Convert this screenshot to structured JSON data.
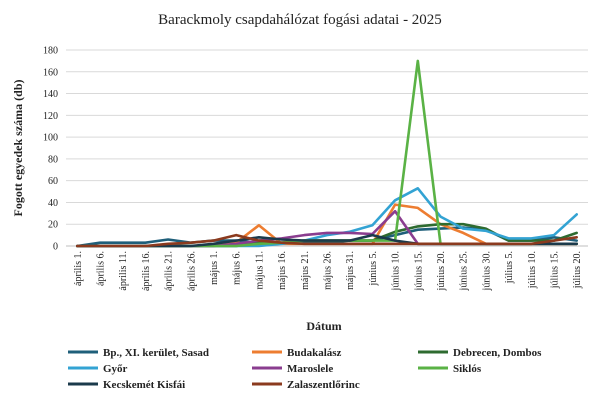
{
  "chart_data": {
    "type": "line",
    "title": "Barackmoly csapdahálózat fogási adatai - 2025",
    "xlabel": "Dátum",
    "ylabel": "Fogott egyedek száma (db)",
    "ylim": [
      0,
      180
    ],
    "yticks": [
      0,
      20,
      40,
      60,
      80,
      100,
      120,
      140,
      160,
      180
    ],
    "grid": true,
    "legend_position": "bottom",
    "categories": [
      "április 1.",
      "április 6.",
      "április 11.",
      "április 16.",
      "április 21.",
      "április 26.",
      "május 1.",
      "május 6.",
      "május 11.",
      "május 16.",
      "május 21.",
      "május 26.",
      "május 31.",
      "június 5.",
      "június 10.",
      "június 15.",
      "június 20.",
      "június 25.",
      "június 30.",
      "július 5.",
      "július 10.",
      "július 15.",
      "július 20."
    ],
    "series": [
      {
        "name": "Bp., XI. kerület, Sasad",
        "color": "#1f5f7a",
        "values": [
          0,
          3,
          3,
          3,
          6,
          3,
          5,
          5,
          3,
          3,
          3,
          3,
          5,
          5,
          10,
          15,
          16,
          17,
          15,
          5,
          5,
          8,
          5
        ]
      },
      {
        "name": "Budakalász",
        "color": "#ed7d31",
        "values": [
          0,
          0,
          0,
          0,
          0,
          0,
          0,
          3,
          19,
          2,
          2,
          2,
          2,
          2,
          38,
          35,
          20,
          12,
          2,
          2,
          2,
          2,
          2
        ]
      },
      {
        "name": "Debrecen, Dombos",
        "color": "#2e6b30",
        "values": [
          0,
          0,
          0,
          0,
          0,
          0,
          0,
          0,
          3,
          3,
          5,
          5,
          5,
          5,
          13,
          18,
          20,
          20,
          16,
          5,
          5,
          5,
          12
        ]
      },
      {
        "name": "Győr",
        "color": "#33a3d3",
        "values": [
          0,
          0,
          0,
          0,
          0,
          0,
          0,
          0,
          0,
          2,
          5,
          10,
          13,
          19,
          42,
          53,
          27,
          16,
          14,
          7,
          7,
          10,
          29
        ]
      },
      {
        "name": "Maroslele",
        "color": "#8a3d8f",
        "values": [
          0,
          0,
          0,
          0,
          0,
          0,
          0,
          2,
          5,
          7,
          10,
          12,
          12,
          11,
          32,
          2,
          2,
          2,
          2,
          2,
          2,
          2,
          2
        ]
      },
      {
        "name": "Siklós",
        "color": "#5ab245",
        "values": [
          0,
          0,
          0,
          0,
          0,
          0,
          0,
          0,
          2,
          3,
          5,
          5,
          5,
          5,
          5,
          170,
          2,
          2,
          2,
          2,
          2,
          2,
          2
        ]
      },
      {
        "name": "Kecskemét Kisfái",
        "color": "#1b3a4b",
        "values": [
          0,
          0,
          0,
          0,
          0,
          0,
          2,
          5,
          8,
          6,
          5,
          5,
          5,
          10,
          5,
          2,
          2,
          2,
          2,
          2,
          2,
          2,
          2
        ]
      },
      {
        "name": "Zalaszentlőrinc",
        "color": "#8b3a1e",
        "values": [
          0,
          0,
          0,
          0,
          2,
          3,
          5,
          10,
          5,
          3,
          2,
          2,
          2,
          2,
          2,
          2,
          2,
          2,
          2,
          2,
          2,
          5,
          8
        ]
      }
    ]
  }
}
